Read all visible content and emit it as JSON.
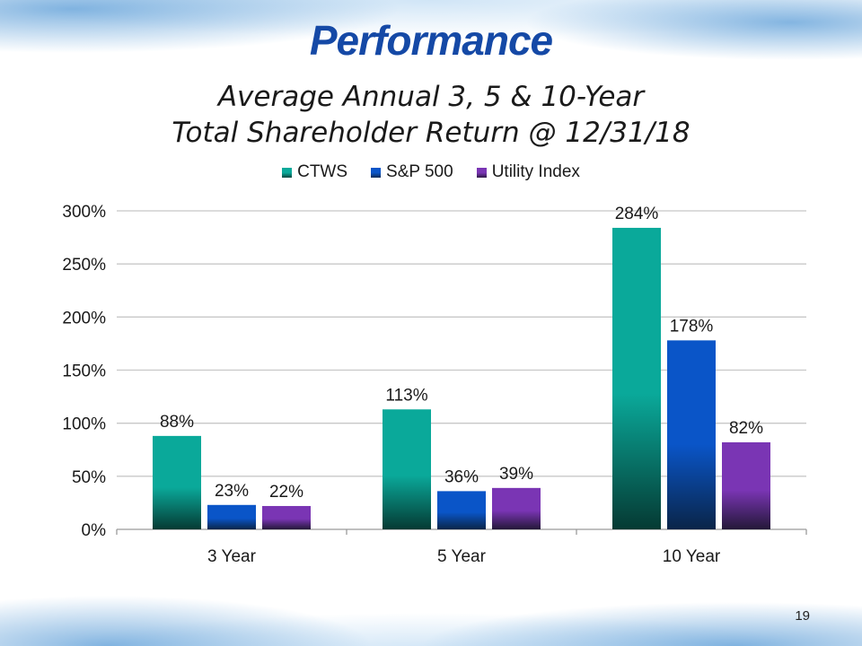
{
  "slide": {
    "title": "Performance",
    "subtitle_line1": "Average Annual 3, 5 & 10-Year",
    "subtitle_line2": "Total Shareholder Return @ 12/31/18",
    "page_number": "19"
  },
  "colors": {
    "CTWS": "#0aa99a",
    "SP500": "#0a55c8",
    "Utility": "#7a35b4",
    "grid": "#c8c8c8",
    "title": "#1549a6"
  },
  "chart_data": {
    "type": "bar",
    "title": "Average Annual 3, 5 & 10-Year Total Shareholder Return @ 12/31/18",
    "categories": [
      "3 Year",
      "5 Year",
      "10 Year"
    ],
    "series": [
      {
        "name": "CTWS",
        "values": [
          88,
          113,
          284
        ],
        "labels": [
          "88%",
          "113%",
          "284%"
        ]
      },
      {
        "name": "S&P 500",
        "values": [
          23,
          36,
          178
        ],
        "labels": [
          "23%",
          "36%",
          "178%"
        ]
      },
      {
        "name": "Utility Index",
        "values": [
          22,
          39,
          82
        ],
        "labels": [
          "22%",
          "39%",
          "82%"
        ]
      }
    ],
    "yticks": [
      "0%",
      "50%",
      "100%",
      "150%",
      "200%",
      "250%",
      "300%"
    ],
    "ylim": [
      0,
      300
    ],
    "xlabel": "",
    "ylabel": "",
    "legend": "top",
    "grid": true
  }
}
